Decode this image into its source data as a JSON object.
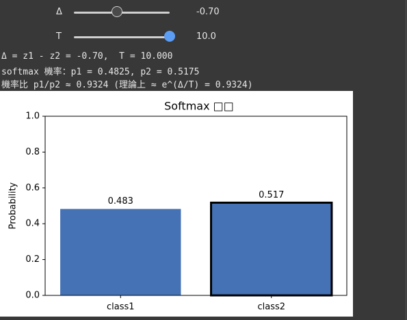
{
  "widgets": [
    {
      "label": "Δ",
      "value": "-0.70"
    },
    {
      "label": "T",
      "value": "10.0"
    }
  ],
  "output_lines": [
    "Δ = z1 - z2 = -0.70,  T = 10.000",
    "softmax 機率：p1 = 0.4825, p2 = 0.5175",
    "機率比 p1/p2 ≈ 0.9324 (理論上 ≈ e^(Δ/T) = 0.9324)"
  ],
  "chart_data": {
    "type": "bar",
    "title": "Softmax □□",
    "y_label": "Probability",
    "categories": [
      "class1",
      "class2"
    ],
    "values": [
      0.4825,
      0.5175
    ],
    "value_labels": [
      "0.483",
      "0.517"
    ],
    "color": "#4472b4",
    "edgecolors": [
      "none",
      "#000000"
    ],
    "ylim": [
      0,
      1
    ],
    "yticks": [
      {
        "value": 0,
        "label": "0.0"
      },
      {
        "value": 0.2,
        "label": "0.2"
      },
      {
        "value": 0.4,
        "label": "0.4"
      },
      {
        "value": 0.6,
        "label": "0.6"
      },
      {
        "value": 0.8,
        "label": "0.8"
      },
      {
        "value": 1,
        "label": "1.0"
      }
    ]
  }
}
